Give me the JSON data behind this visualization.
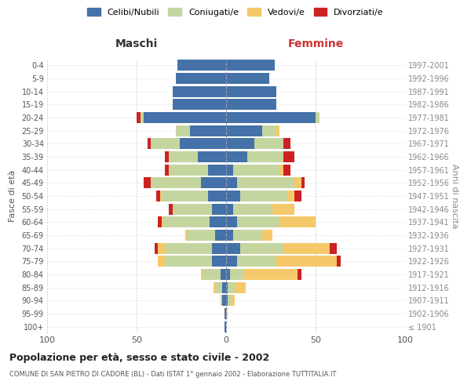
{
  "age_groups": [
    "100+",
    "95-99",
    "90-94",
    "85-89",
    "80-84",
    "75-79",
    "70-74",
    "65-69",
    "60-64",
    "55-59",
    "50-54",
    "45-49",
    "40-44",
    "35-39",
    "30-34",
    "25-29",
    "20-24",
    "15-19",
    "10-14",
    "5-9",
    "0-4"
  ],
  "birth_years": [
    "≤ 1901",
    "1902-1906",
    "1907-1911",
    "1912-1916",
    "1917-1921",
    "1922-1926",
    "1927-1931",
    "1932-1936",
    "1937-1941",
    "1942-1946",
    "1947-1951",
    "1952-1956",
    "1957-1961",
    "1962-1966",
    "1967-1971",
    "1972-1976",
    "1977-1981",
    "1982-1986",
    "1987-1991",
    "1992-1996",
    "1997-2001"
  ],
  "maschi": {
    "celibi": [
      1,
      1,
      2,
      2,
      3,
      8,
      8,
      6,
      9,
      8,
      10,
      14,
      10,
      16,
      26,
      20,
      46,
      30,
      30,
      28,
      27
    ],
    "coniugati": [
      0,
      0,
      1,
      4,
      10,
      26,
      26,
      16,
      26,
      22,
      26,
      28,
      22,
      16,
      16,
      8,
      2,
      0,
      0,
      0,
      0
    ],
    "vedovi": [
      0,
      0,
      0,
      1,
      1,
      4,
      4,
      1,
      1,
      0,
      1,
      0,
      0,
      0,
      0,
      0,
      0,
      0,
      0,
      0,
      0
    ],
    "divorziati": [
      0,
      0,
      0,
      0,
      0,
      0,
      2,
      0,
      2,
      2,
      2,
      4,
      2,
      2,
      2,
      0,
      2,
      0,
      0,
      0,
      0
    ]
  },
  "femmine": {
    "nubili": [
      0,
      0,
      1,
      1,
      2,
      6,
      8,
      4,
      6,
      4,
      8,
      6,
      4,
      12,
      16,
      20,
      50,
      28,
      28,
      24,
      27
    ],
    "coniugate": [
      0,
      0,
      2,
      4,
      8,
      22,
      24,
      16,
      24,
      22,
      26,
      32,
      26,
      20,
      16,
      8,
      2,
      0,
      0,
      0,
      0
    ],
    "vedove": [
      0,
      1,
      2,
      6,
      30,
      34,
      26,
      6,
      20,
      12,
      4,
      4,
      2,
      0,
      0,
      2,
      0,
      0,
      0,
      0,
      0
    ],
    "divorziate": [
      0,
      0,
      0,
      0,
      2,
      2,
      4,
      0,
      0,
      0,
      4,
      2,
      4,
      6,
      4,
      0,
      0,
      0,
      0,
      0,
      0
    ]
  },
  "colors": {
    "celibi_nubili": "#4472A8",
    "coniugati": "#C5D5A0",
    "vedovi": "#F5C96A",
    "divorziati": "#CC2222"
  },
  "xlim": 100,
  "title": "Popolazione per età, sesso e stato civile - 2002",
  "subtitle": "COMUNE DI SAN PIETRO DI CADORE (BL) - Dati ISTAT 1° gennaio 2002 - Elaborazione TUTTITALIA.IT",
  "ylabel_left": "Fasce di età",
  "ylabel_right": "Anni di nascita",
  "xlabel_left": "Maschi",
  "xlabel_right": "Femmine",
  "legend_labels": [
    "Celibi/Nubili",
    "Coniugati/e",
    "Vedovi/e",
    "Divorziati/e"
  ],
  "background_color": "#ffffff",
  "grid_color": "#cccccc"
}
